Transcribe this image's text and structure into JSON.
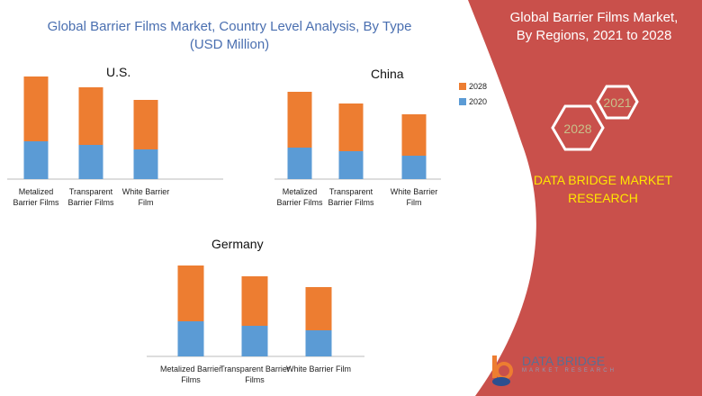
{
  "header": {
    "title": "Global Barrier Films Market, Country Level Analysis, By Type (USD Million)"
  },
  "side": {
    "title": "Global Barrier Films Market, By Regions, 2021 to 2028",
    "hex_a": "2028",
    "hex_b": "2021",
    "brand": "DATA BRIDGE MARKET RESEARCH",
    "logo": "DATA BRIDGE",
    "logo_sub": "MARKET RESEARCH"
  },
  "colors": {
    "s2020": "#5b9bd5",
    "s2028": "#ed7d31",
    "panel": "#c9504b"
  },
  "chart_data": [
    {
      "type": "bar",
      "stacked": true,
      "title": "U.S.",
      "categories": [
        "Metalized Barrier Films",
        "Transparent Barrier Films",
        "White Barrier Film"
      ],
      "series": [
        {
          "name": "2020",
          "values": [
            42,
            38,
            33
          ]
        },
        {
          "name": "2028",
          "values": [
            72,
            64,
            55
          ]
        }
      ]
    },
    {
      "type": "bar",
      "stacked": true,
      "title": "China",
      "categories": [
        "Metalized Barrier Films",
        "Transparent Barrier Films",
        "White Barrier Film"
      ],
      "series": [
        {
          "name": "2020",
          "values": [
            35,
            31,
            26
          ]
        },
        {
          "name": "2028",
          "values": [
            62,
            53,
            46
          ]
        }
      ],
      "legend": [
        "2028",
        "2020"
      ]
    },
    {
      "type": "bar",
      "stacked": true,
      "title": "Germany",
      "categories": [
        "Metalized Barrier Films",
        "Transparent Barrier Films",
        "White Barrier Film"
      ],
      "series": [
        {
          "name": "2020",
          "values": [
            39,
            34,
            29
          ]
        },
        {
          "name": "2028",
          "values": [
            62,
            55,
            48
          ]
        }
      ]
    }
  ]
}
